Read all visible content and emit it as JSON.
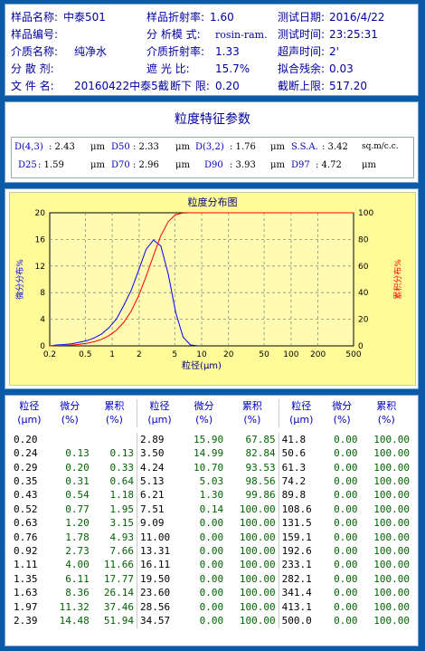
{
  "info": {
    "row1": {
      "name_label": "样品名称:",
      "name_value": "中泰501",
      "ri_label": "样品折射率:",
      "ri_value": "1.60",
      "date_label": "测试日期:",
      "date_value": "2016/4/22"
    },
    "row2": {
      "id_label": "样品编号:",
      "mode_label": "分 析模 式:",
      "mode_value": "rosin-ram.",
      "time_label": "测试时间:",
      "time_value": "23:25:31"
    },
    "row3": {
      "medium_label": "介质名称:",
      "medium_value": "纯净水",
      "mri_label": "介质折射率:",
      "mri_value": "1.33",
      "us_label": "超声时间:",
      "us_value": "2'"
    },
    "row4": {
      "disp_label": "分 散 剂:",
      "obs_label": "遮   光  比:",
      "obs_value": "15.7%",
      "fit_label": "拟合残余:",
      "fit_value": "0.03"
    },
    "row5": {
      "file_label": "文  件  名:",
      "file_value": "20160422中泰5截",
      "low_label": "断下 限:",
      "low_value": "0.20",
      "up_label": "截断上限:",
      "up_value": "517.20"
    }
  },
  "params": {
    "title": "粒度特征参数",
    "row1": [
      {
        "label": "D(4,3)",
        "value": ": 2.43",
        "unit": "μm"
      },
      {
        "label": "D50",
        "value": ": 2.33",
        "unit": "μm"
      },
      {
        "label": "D(3,2)",
        "value": ": 1.76",
        "unit": "μm"
      },
      {
        "label": "S.S.A.",
        "value": ": 3.42",
        "unit": "sq.m/c.c."
      }
    ],
    "row2": [
      {
        "label": "D25",
        "value": ": 1.59",
        "unit": "μm"
      },
      {
        "label": "D70",
        "value": ": 2.96",
        "unit": "μm"
      },
      {
        "label": "D90",
        "value": ": 3.93",
        "unit": "μm"
      },
      {
        "label": "D97",
        "value": ": 4.72",
        "unit": "μm"
      }
    ]
  },
  "chart_data": {
    "type": "line",
    "title": "粒度分布图",
    "xlabel": "粒径(μm)",
    "ylabel_left": "微分分布%",
    "ylabel_right": "累积分布%",
    "xscale": "log",
    "xlim": [
      0.2,
      500
    ],
    "ylim_left": [
      0,
      20
    ],
    "ylim_right": [
      0,
      100
    ],
    "x_ticks": [
      "0.2",
      "0.5",
      "1",
      "2",
      "5",
      "10",
      "20",
      "50",
      "100",
      "200",
      "500"
    ],
    "y_left_ticks": [
      "0",
      "4",
      "8",
      "12",
      "16",
      "20"
    ],
    "y_right_ticks": [
      "0",
      "20",
      "40",
      "60",
      "80",
      "100"
    ],
    "series": [
      {
        "name": "微分分布%",
        "axis": "left",
        "color": "#0000ff",
        "x": [
          0.2,
          0.24,
          0.29,
          0.35,
          0.43,
          0.52,
          0.63,
          0.76,
          0.92,
          1.11,
          1.35,
          1.63,
          1.97,
          2.39,
          2.89,
          3.5,
          4.24,
          5.13,
          6.21,
          7.51,
          9.09
        ],
        "y": [
          0,
          0.13,
          0.2,
          0.31,
          0.54,
          0.77,
          1.2,
          1.78,
          2.73,
          4.0,
          6.11,
          8.36,
          11.32,
          14.48,
          15.9,
          14.99,
          10.7,
          5.03,
          1.3,
          0.14,
          0
        ]
      },
      {
        "name": "累积分布%",
        "axis": "right",
        "color": "#ff0000",
        "x": [
          0.2,
          0.24,
          0.29,
          0.35,
          0.43,
          0.52,
          0.63,
          0.76,
          0.92,
          1.11,
          1.35,
          1.63,
          1.97,
          2.39,
          2.89,
          3.5,
          4.24,
          5.13,
          6.21,
          7.51,
          9.09,
          500
        ],
        "y": [
          0,
          0.13,
          0.33,
          0.64,
          1.18,
          1.95,
          3.15,
          4.93,
          7.66,
          11.66,
          17.77,
          26.14,
          37.46,
          51.94,
          67.85,
          82.84,
          93.53,
          98.56,
          99.86,
          100,
          100,
          100
        ]
      }
    ]
  },
  "table": {
    "headers": [
      [
        "粒径",
        "(μm)"
      ],
      [
        "微分",
        "(%)"
      ],
      [
        "累积",
        "(%)"
      ],
      [
        "粒径",
        "(μm)"
      ],
      [
        "微分",
        "(%)"
      ],
      [
        "累积",
        "(%)"
      ],
      [
        "粒径",
        "(μm)"
      ],
      [
        "微分",
        "(%)"
      ],
      [
        "累积",
        "(%)"
      ]
    ],
    "rows": [
      [
        "0.20",
        "",
        "",
        "2.89",
        "15.90",
        "67.85",
        "41.8",
        "0.00",
        "100.00"
      ],
      [
        "0.24",
        "0.13",
        "0.13",
        "3.50",
        "14.99",
        "82.84",
        "50.6",
        "0.00",
        "100.00"
      ],
      [
        "0.29",
        "0.20",
        "0.33",
        "4.24",
        "10.70",
        "93.53",
        "61.3",
        "0.00",
        "100.00"
      ],
      [
        "0.35",
        "0.31",
        "0.64",
        "5.13",
        "5.03",
        "98.56",
        "74.2",
        "0.00",
        "100.00"
      ],
      [
        "0.43",
        "0.54",
        "1.18",
        "6.21",
        "1.30",
        "99.86",
        "89.8",
        "0.00",
        "100.00"
      ],
      [
        "0.52",
        "0.77",
        "1.95",
        "7.51",
        "0.14",
        "100.00",
        "108.6",
        "0.00",
        "100.00"
      ],
      [
        "0.63",
        "1.20",
        "3.15",
        "9.09",
        "0.00",
        "100.00",
        "131.5",
        "0.00",
        "100.00"
      ],
      [
        "0.76",
        "1.78",
        "4.93",
        "11.00",
        "0.00",
        "100.00",
        "159.1",
        "0.00",
        "100.00"
      ],
      [
        "0.92",
        "2.73",
        "7.66",
        "13.31",
        "0.00",
        "100.00",
        "192.6",
        "0.00",
        "100.00"
      ],
      [
        "1.11",
        "4.00",
        "11.66",
        "16.11",
        "0.00",
        "100.00",
        "233.1",
        "0.00",
        "100.00"
      ],
      [
        "1.35",
        "6.11",
        "17.77",
        "19.50",
        "0.00",
        "100.00",
        "282.1",
        "0.00",
        "100.00"
      ],
      [
        "1.63",
        "8.36",
        "26.14",
        "23.60",
        "0.00",
        "100.00",
        "341.4",
        "0.00",
        "100.00"
      ],
      [
        "1.97",
        "11.32",
        "37.46",
        "28.56",
        "0.00",
        "100.00",
        "413.1",
        "0.00",
        "100.00"
      ],
      [
        "2.39",
        "14.48",
        "51.94",
        "34.57",
        "0.00",
        "100.00",
        "500.0",
        "0.00",
        "100.00"
      ]
    ]
  }
}
